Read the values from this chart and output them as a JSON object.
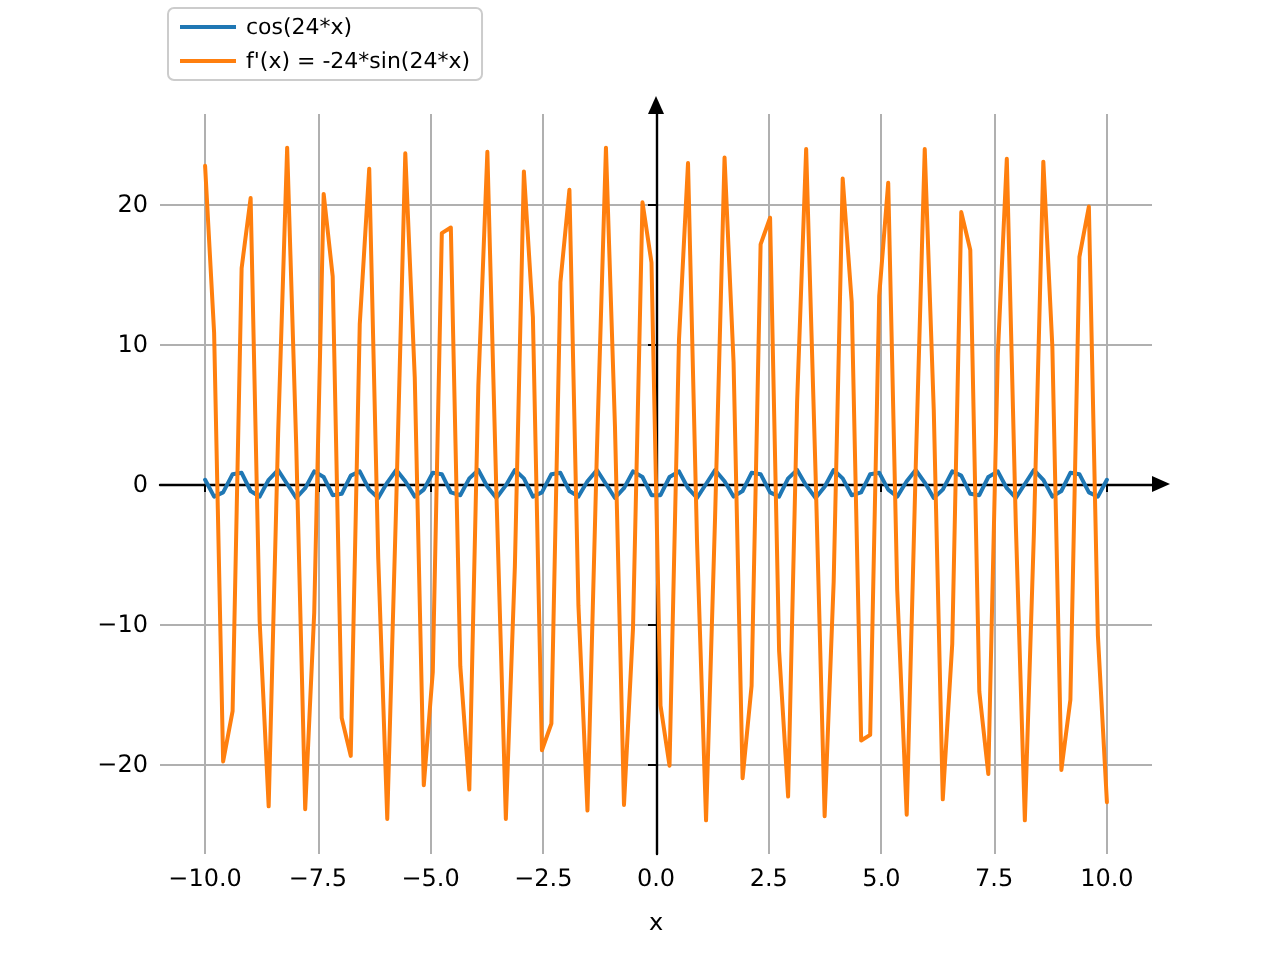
{
  "chart_data": {
    "type": "line",
    "xlabel": "x",
    "legend": "top left",
    "grid": true,
    "marker": "none",
    "line_style": "solid",
    "xlim": [
      -11,
      11
    ],
    "ylim": [
      -26.4,
      26.4
    ],
    "xticks": [
      {
        "value": -10,
        "label": "−10.0"
      },
      {
        "value": -7.5,
        "label": "−7.5"
      },
      {
        "value": -5,
        "label": "−5.0"
      },
      {
        "value": -2.5,
        "label": "−2.5"
      },
      {
        "value": 0,
        "label": "0.0"
      },
      {
        "value": 2.5,
        "label": "2.5"
      },
      {
        "value": 5,
        "label": "5.0"
      },
      {
        "value": 7.5,
        "label": "7.5"
      },
      {
        "value": 10,
        "label": "10.0"
      }
    ],
    "yticks": [
      {
        "value": -20,
        "label": "−20"
      },
      {
        "value": -10,
        "label": "−10"
      },
      0,
      10,
      20
    ],
    "x": [
      -10,
      -9.8,
      -9.6,
      -9.39,
      -9.19,
      -8.99,
      -8.79,
      -8.59,
      -8.38,
      -8.18,
      -7.98,
      -7.78,
      -7.58,
      -7.37,
      -7.17,
      -6.97,
      -6.77,
      -6.57,
      -6.36,
      -6.16,
      -5.96,
      -5.76,
      -5.56,
      -5.35,
      -5.15,
      -4.95,
      -4.75,
      -4.55,
      -4.34,
      -4.14,
      -3.94,
      -3.74,
      -3.54,
      -3.33,
      -3.13,
      -2.93,
      -2.73,
      -2.53,
      -2.32,
      -2.12,
      -1.92,
      -1.72,
      -1.52,
      -1.31,
      -1.11,
      -0.91,
      -0.71,
      -0.51,
      -0.3,
      -0.1,
      0.1,
      0.3,
      0.51,
      0.71,
      0.91,
      1.11,
      1.31,
      1.52,
      1.72,
      1.92,
      2.12,
      2.32,
      2.53,
      2.73,
      2.93,
      3.13,
      3.33,
      3.54,
      3.74,
      3.94,
      4.14,
      4.34,
      4.55,
      4.75,
      4.95,
      5.15,
      5.35,
      5.56,
      5.76,
      5.96,
      6.16,
      6.36,
      6.57,
      6.77,
      6.97,
      7.17,
      7.37,
      7.58,
      7.78,
      7.98,
      8.18,
      8.38,
      8.59,
      8.79,
      8.99,
      9.19,
      9.39,
      9.6,
      9.8,
      10
    ],
    "series": [
      {
        "name": "cos(24*x)",
        "color": "#1f77b4",
        "values": [
          0.3,
          -0.9,
          -0.6,
          0.7,
          0.8,
          -0.5,
          -0.9,
          0.3,
          1.0,
          0.0,
          -1.0,
          -0.3,
          0.9,
          0.5,
          -0.8,
          -0.7,
          0.6,
          0.9,
          -0.4,
          -1.0,
          0.1,
          1.0,
          0.2,
          -0.9,
          -0.4,
          0.8,
          0.7,
          -0.6,
          -0.8,
          0.4,
          1.0,
          -0.2,
          -1.0,
          -0.1,
          1.0,
          0.4,
          -0.9,
          -0.6,
          0.7,
          0.8,
          -0.5,
          -0.9,
          0.2,
          1.0,
          0.0,
          -1.0,
          -0.3,
          0.9,
          0.5,
          -0.8,
          -0.8,
          0.5,
          0.9,
          -0.3,
          -1.0,
          0.0,
          1.0,
          0.2,
          -0.9,
          -0.5,
          0.8,
          0.7,
          -0.6,
          -0.9,
          0.4,
          1.0,
          -0.1,
          -1.0,
          -0.2,
          1.0,
          0.4,
          -0.8,
          -0.6,
          0.7,
          0.8,
          -0.4,
          -0.9,
          0.2,
          1.0,
          0.1,
          -1.0,
          -0.4,
          0.9,
          0.6,
          -0.7,
          -0.8,
          0.5,
          0.9,
          -0.3,
          -1.0,
          0.0,
          1.0,
          0.3,
          -0.9,
          -0.5,
          0.8,
          0.7,
          -0.6,
          -0.9,
          0.3
        ]
      },
      {
        "name": "f'(x) = -24*sin(24*x)",
        "color": "#ff7f0e",
        "values": [
          22.7,
          10.8,
          -19.8,
          -16.2,
          15.4,
          20.4,
          -9.8,
          -23.0,
          3.6,
          24.0,
          2.9,
          -23.2,
          -9.2,
          20.7,
          14.8,
          -16.7,
          -19.4,
          11.4,
          22.5,
          -5.3,
          -23.9,
          -1.2,
          23.6,
          7.6,
          -21.5,
          -13.4,
          17.9,
          18.3,
          -13.0,
          -21.8,
          7.0,
          23.7,
          -0.6,
          -23.9,
          -5.9,
          22.3,
          11.9,
          -19.0,
          -17.1,
          14.4,
          21.0,
          -8.7,
          -23.3,
          2.4,
          24.0,
          4.1,
          -22.9,
          -10.3,
          20.1,
          15.8,
          -15.8,
          -20.1,
          10.3,
          22.9,
          -4.1,
          -24.0,
          -2.4,
          23.3,
          8.7,
          -21.0,
          -14.4,
          17.1,
          19.0,
          -11.9,
          -22.3,
          5.9,
          23.9,
          0.6,
          -23.7,
          -7.0,
          21.8,
          13.0,
          -18.3,
          -17.9,
          13.4,
          21.5,
          -7.6,
          -23.6,
          1.2,
          23.9,
          5.3,
          -22.5,
          -11.4,
          19.4,
          16.7,
          -14.8,
          -20.7,
          9.2,
          23.2,
          -2.9,
          -24.0,
          -3.6,
          23.0,
          9.8,
          -20.4,
          -15.4,
          16.2,
          19.8,
          -10.8,
          -22.7
        ]
      }
    ]
  }
}
